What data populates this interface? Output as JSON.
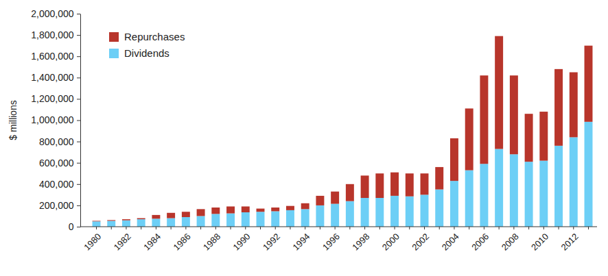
{
  "chart_data": {
    "type": "bar",
    "stacked": true,
    "grid": false,
    "legend": "top-left",
    "y_label": "$ millions",
    "categories": [
      "1980",
      null,
      "1982",
      null,
      "1984",
      null,
      "1986",
      null,
      "1988",
      null,
      "1990",
      null,
      "1992",
      null,
      "1994",
      null,
      "1996",
      null,
      "1998",
      null,
      "2000",
      null,
      "2002",
      null,
      "2004",
      null,
      "2006",
      null,
      "2008",
      null,
      "2010",
      null,
      "2012",
      null
    ],
    "series": [
      {
        "name": "Repurchases",
        "color": "#b8352b",
        "values": [
          5000,
          7000,
          10000,
          10000,
          35000,
          50000,
          50000,
          65000,
          60000,
          65000,
          55000,
          30000,
          35000,
          40000,
          55000,
          90000,
          115000,
          160000,
          210000,
          230000,
          220000,
          215000,
          200000,
          210000,
          400000,
          580000,
          830000,
          1060000,
          740000,
          450000,
          460000,
          720000,
          610000,
          715000
        ]
      },
      {
        "name": "Dividends",
        "color": "#6dcff6",
        "values": [
          50000,
          55000,
          60000,
          70000,
          75000,
          80000,
          90000,
          100000,
          120000,
          125000,
          135000,
          140000,
          145000,
          155000,
          165000,
          200000,
          215000,
          240000,
          270000,
          270000,
          290000,
          285000,
          300000,
          350000,
          430000,
          530000,
          590000,
          730000,
          680000,
          610000,
          620000,
          760000,
          840000,
          985000
        ]
      }
    ],
    "ylim": [
      0,
      2000000
    ],
    "yticks": [
      0,
      {
        "value": 200000,
        "label": "200,000"
      },
      {
        "value": 400000,
        "label": "400,000"
      },
      {
        "value": 600000,
        "label": "600,000"
      },
      {
        "value": 800000,
        "label": "800,000"
      },
      {
        "value": 1000000,
        "label": "1,000,000"
      },
      {
        "value": 1200000,
        "label": "1,200,000"
      },
      {
        "value": 1400000,
        "label": "1,400,000"
      },
      {
        "value": 1600000,
        "label": "1,600,000"
      },
      {
        "value": 1800000,
        "label": "1,800,000"
      },
      {
        "value": 2000000,
        "label": "2,000,000"
      }
    ]
  }
}
